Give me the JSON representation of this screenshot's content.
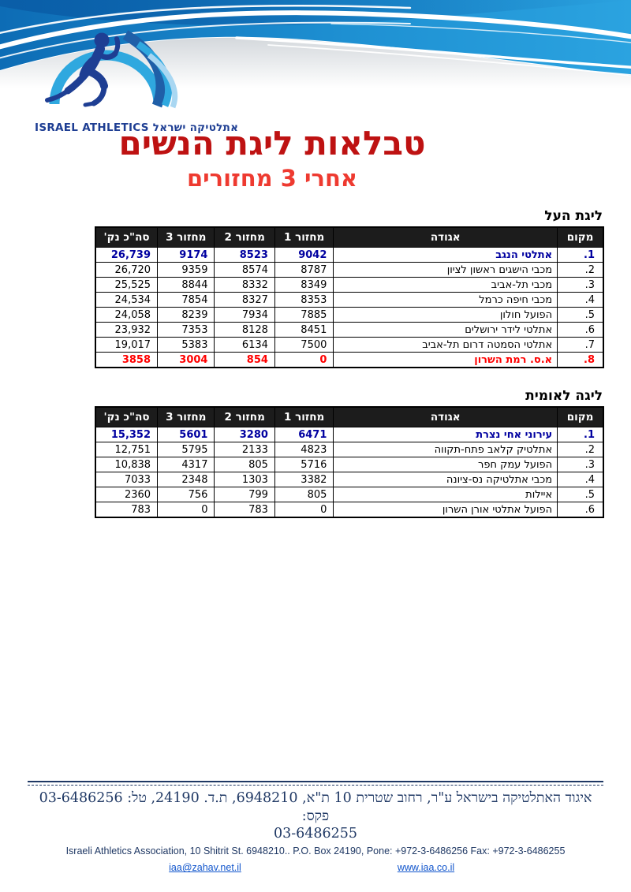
{
  "logo": {
    "caption_en": "ISRAEL ATHLETICS",
    "caption_he": "אתלטיקה ישראל"
  },
  "title": "טבלאות ליגת הנשים",
  "subtitle": "אחרי 3 מחזורים",
  "sections": [
    {
      "heading": "ליגת העל",
      "table": {
        "columns": [
          "מקום",
          "אגודה",
          "מחזור 1",
          "מחזור 2",
          "מחזור 3",
          "סה\"כ נק'"
        ],
        "rows": [
          {
            "cells": [
              "1.",
              "אתלטי הנגב",
              "9042",
              "8523",
              "9174",
              "26,739"
            ],
            "style": "leader"
          },
          {
            "cells": [
              "2.",
              "מכבי הישגים ראשון לציון",
              "8787",
              "8574",
              "9359",
              "26,720"
            ],
            "style": ""
          },
          {
            "cells": [
              "3.",
              "מכבי תל-אביב",
              "8349",
              "8332",
              "8844",
              "25,525"
            ],
            "style": ""
          },
          {
            "cells": [
              "4.",
              "מכבי חיפה כרמל",
              "8353",
              "8327",
              "7854",
              "24,534"
            ],
            "style": ""
          },
          {
            "cells": [
              "5.",
              "הפועל חולון",
              "7885",
              "7934",
              "8239",
              "24,058"
            ],
            "style": ""
          },
          {
            "cells": [
              "6.",
              "אתלטי לידר ירושלים",
              "8451",
              "8128",
              "7353",
              "23,932"
            ],
            "style": ""
          },
          {
            "cells": [
              "7.",
              "אתלטי הסמטה דרום תל-אביב",
              "7500",
              "6134",
              "5383",
              "19,017"
            ],
            "style": ""
          },
          {
            "cells": [
              "8.",
              "א.ס. רמת השרון",
              "0",
              "854",
              "3004",
              "3858"
            ],
            "style": "relegated"
          }
        ]
      }
    },
    {
      "heading": "ליגה לאומית",
      "table": {
        "columns": [
          "מקום",
          "אגודה",
          "מחזור 1",
          "מחזור 2",
          "מחזור 3",
          "סה\"כ נק'"
        ],
        "rows": [
          {
            "cells": [
              "1.",
              "עירוני אחי נצרת",
              "6471",
              "3280",
              "5601",
              "15,352"
            ],
            "style": "leader"
          },
          {
            "cells": [
              "2.",
              "אתלטיק קלאב פתח-תקווה",
              "4823",
              "2133",
              "5795",
              "12,751"
            ],
            "style": ""
          },
          {
            "cells": [
              "3.",
              "הפועל עמק חפר",
              "5716",
              "805",
              "4317",
              "10,838"
            ],
            "style": ""
          },
          {
            "cells": [
              "4.",
              "מכבי אתלטיקה נס-ציונה",
              "3382",
              "1303",
              "2348",
              "7033"
            ],
            "style": ""
          },
          {
            "cells": [
              "5.",
              "איילות",
              "805",
              "799",
              "756",
              "2360"
            ],
            "style": ""
          },
          {
            "cells": [
              "6.",
              "הפועל אתלטי אורן השרון",
              "0",
              "783",
              "0",
              "783"
            ],
            "style": ""
          }
        ]
      }
    }
  ],
  "footer": {
    "address_he_line1": "איגוד האתלטיקה בישראל ע\"ר, רחוב שטרית 10 ת\"א, 6948210, ת.ד. 24190, טל: 03-6486256 פקס:",
    "address_he_line2": "03-6486255",
    "address_en": "Israeli Athletics Association, 10 Shitrit St. 6948210.. P.O. Box 24190, Pone: +972-3-6486256 Fax: +972-3-6486255",
    "email": "iaa@zahav.net.il",
    "website": "www.iaa.co.il"
  },
  "colors": {
    "title_red": "#be1212",
    "subtitle_red": "#ee3a30",
    "header_bg": "#1c1c1c",
    "leader_blue": "#0000a0",
    "relegated_red": "#ff0000",
    "brand_navy": "#1e3e93",
    "banner_blue_dark": "#0a5ea8",
    "banner_blue_light": "#2ba3e0",
    "footer_navy": "#1f3864",
    "link_blue": "#1155cc"
  }
}
